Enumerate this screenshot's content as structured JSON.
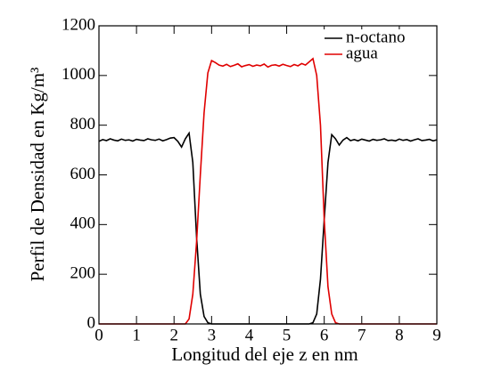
{
  "chart_data": {
    "type": "line",
    "xlabel": "Longitud del eje z en nm",
    "ylabel": "Perfil de Densidad en Kg/m³",
    "x": [
      0,
      0.1,
      0.2,
      0.3,
      0.4,
      0.5,
      0.6,
      0.7,
      0.8,
      0.9,
      1,
      1.1,
      1.2,
      1.3,
      1.4,
      1.5,
      1.6,
      1.7,
      1.8,
      1.9,
      2,
      2.1,
      2.2,
      2.3,
      2.4,
      2.5,
      2.6,
      2.7,
      2.8,
      2.9,
      3,
      3.1,
      3.2,
      3.3,
      3.4,
      3.5,
      3.6,
      3.7,
      3.8,
      3.9,
      4,
      4.1,
      4.2,
      4.3,
      4.4,
      4.5,
      4.6,
      4.7,
      4.8,
      4.9,
      5,
      5.1,
      5.2,
      5.3,
      5.4,
      5.5,
      5.6,
      5.7,
      5.8,
      5.9,
      6,
      6.1,
      6.2,
      6.3,
      6.4,
      6.5,
      6.6,
      6.7,
      6.8,
      6.9,
      7,
      7.1,
      7.2,
      7.3,
      7.4,
      7.5,
      7.6,
      7.7,
      7.8,
      7.9,
      8,
      8.1,
      8.2,
      8.3,
      8.4,
      8.5,
      8.6,
      8.7,
      8.8,
      8.9,
      9
    ],
    "series": [
      {
        "name": "n-octano",
        "color": "#000000",
        "values": [
          735,
          742,
          738,
          745,
          740,
          737,
          744,
          739,
          741,
          736,
          743,
          740,
          738,
          745,
          741,
          739,
          744,
          737,
          742,
          748,
          750,
          735,
          712,
          745,
          768,
          650,
          350,
          120,
          30,
          5,
          0,
          0,
          0,
          0,
          0,
          0,
          0,
          0,
          0,
          0,
          0,
          0,
          0,
          0,
          0,
          0,
          0,
          0,
          0,
          0,
          0,
          0,
          0,
          0,
          0,
          0,
          0,
          5,
          40,
          180,
          420,
          650,
          762,
          745,
          720,
          740,
          750,
          738,
          742,
          737,
          744,
          740,
          736,
          743,
          739,
          741,
          745,
          738,
          740,
          737,
          744,
          739,
          742,
          736,
          741,
          745,
          738,
          740,
          743,
          737,
          741
        ]
      },
      {
        "name": "agua",
        "color": "#e00000",
        "values": [
          0,
          0,
          0,
          0,
          0,
          0,
          0,
          0,
          0,
          0,
          0,
          0,
          0,
          0,
          0,
          0,
          0,
          0,
          0,
          0,
          0,
          0,
          0,
          0,
          20,
          120,
          330,
          600,
          850,
          1010,
          1060,
          1052,
          1042,
          1038,
          1045,
          1036,
          1041,
          1047,
          1035,
          1040,
          1044,
          1037,
          1042,
          1039,
          1046,
          1034,
          1041,
          1043,
          1038,
          1045,
          1040,
          1036,
          1044,
          1039,
          1048,
          1042,
          1055,
          1068,
          1000,
          800,
          420,
          150,
          40,
          5,
          0,
          0,
          0,
          0,
          0,
          0,
          0,
          0,
          0,
          0,
          0,
          0,
          0,
          0,
          0,
          0,
          0,
          0,
          0,
          0,
          0,
          0,
          0,
          0,
          0,
          0,
          0
        ]
      }
    ],
    "xlim": [
      0,
      9
    ],
    "xticks": [
      0,
      1,
      2,
      3,
      4,
      5,
      6,
      7,
      8,
      9
    ],
    "ylim": [
      0,
      1200
    ],
    "yticks": [
      0,
      200,
      400,
      600,
      800,
      1000,
      1200
    ],
    "legend": "upper right"
  }
}
